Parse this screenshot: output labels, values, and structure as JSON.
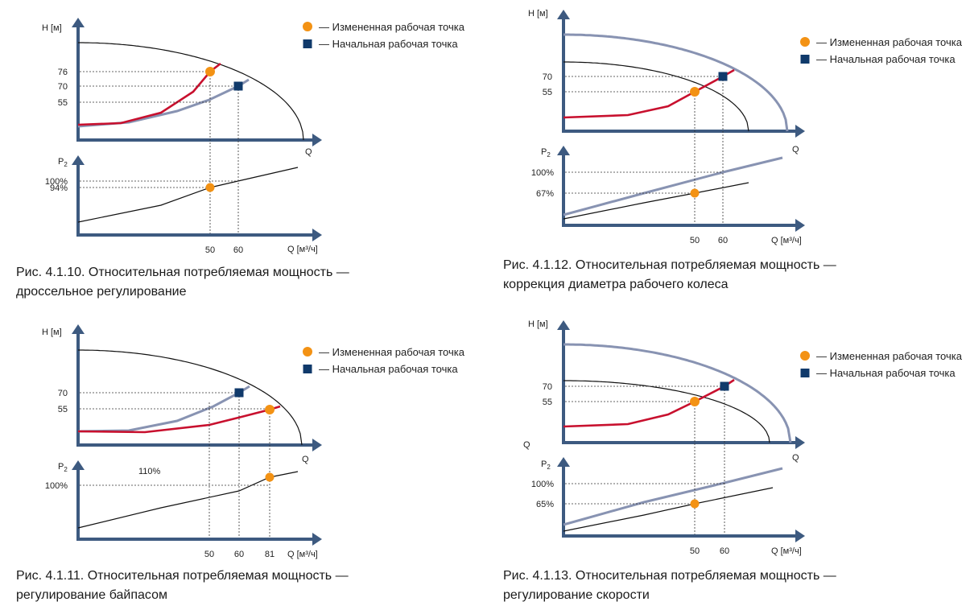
{
  "legend": {
    "changed_point": "— Измененная рабочая точка",
    "initial_point": "— Начальная рабочая точка"
  },
  "colors": {
    "axis": "#3d5a80",
    "system_curve_red": "#c8102e",
    "pump_curve_blue": "#8893b2",
    "changed_point": "#f39214",
    "initial_point": "#103a6b"
  },
  "chart_data": [
    {
      "id": "4.1.10",
      "type": "line",
      "caption": [
        "Рис. 4.1.10. Относительная потребляемая мощность —",
        "дроссельное регулирование"
      ],
      "top": {
        "ylabel": "H [м]",
        "xlabel": "Q",
        "yticks": [
          {
            "v": 76,
            "label": "76"
          },
          {
            "v": 70,
            "label": "70"
          },
          {
            "v": 55,
            "label": "55"
          }
        ]
      },
      "bottom": {
        "ylabel": "P2",
        "xlabel": "Q [м³/ч]",
        "yticks": [
          {
            "v": 100,
            "label": "100%"
          },
          {
            "v": 94,
            "label": "94%"
          }
        ]
      },
      "xticks": [
        {
          "v": 50,
          "label": "50"
        },
        {
          "v": 60,
          "label": "60"
        }
      ],
      "points": {
        "changed": {
          "q": 50,
          "h": 76,
          "p": 94
        },
        "initial": {
          "q": 60,
          "h": 70
        }
      },
      "inline_labels": []
    },
    {
      "id": "4.1.12",
      "type": "line",
      "caption": [
        "Рис. 4.1.12. Относительная потребляемая мощность —",
        "коррекция диаметра рабочего колеса"
      ],
      "top": {
        "ylabel": "H [м]",
        "xlabel": "Q",
        "yticks": [
          {
            "v": 70,
            "label": "70"
          },
          {
            "v": 55,
            "label": "55"
          }
        ]
      },
      "bottom": {
        "ylabel": "P2",
        "xlabel": "Q [м³/ч]",
        "yticks": [
          {
            "v": 100,
            "label": "100%"
          },
          {
            "v": 67,
            "label": "67%"
          }
        ]
      },
      "xticks": [
        {
          "v": 50,
          "label": "50"
        },
        {
          "v": 60,
          "label": "60"
        }
      ],
      "points": {
        "changed": {
          "q": 50,
          "h": 55,
          "p": 67
        },
        "initial": {
          "q": 60,
          "h": 70
        }
      },
      "inline_labels": []
    },
    {
      "id": "4.1.11",
      "type": "line",
      "caption": [
        "Рис. 4.1.11. Относительная потребляемая мощность —",
        "регулирование байпасом"
      ],
      "top": {
        "ylabel": "H [м]",
        "xlabel": "Q",
        "yticks": [
          {
            "v": 70,
            "label": "70"
          },
          {
            "v": 55,
            "label": "55"
          }
        ]
      },
      "bottom": {
        "ylabel": "P2",
        "xlabel": "Q [м³/ч]",
        "yticks": [
          {
            "v": 100,
            "label": "100%"
          }
        ]
      },
      "xticks": [
        {
          "v": 50,
          "label": "50"
        },
        {
          "v": 60,
          "label": "60"
        },
        {
          "v": 81,
          "label": "81"
        }
      ],
      "points": {
        "changed": {
          "q": 81,
          "h": 55,
          "p": 110
        },
        "initial": {
          "q": 60,
          "h": 70
        }
      },
      "inline_labels": [
        "110%"
      ]
    },
    {
      "id": "4.1.13",
      "type": "line",
      "caption": [
        "Рис. 4.1.13. Относительная потребляемая мощность —",
        "регулирование скорости"
      ],
      "top": {
        "ylabel": "H [м]",
        "xlabel": "Q",
        "yticks": [
          {
            "v": 70,
            "label": "70"
          },
          {
            "v": 55,
            "label": "55"
          }
        ]
      },
      "bottom": {
        "ylabel": "P2",
        "xlabel": "Q [м³/ч]",
        "yticks": [
          {
            "v": 100,
            "label": "100%"
          },
          {
            "v": 65,
            "label": "65%"
          }
        ]
      },
      "xticks": [
        {
          "v": 50,
          "label": "50"
        },
        {
          "v": 60,
          "label": "60"
        }
      ],
      "points": {
        "changed": {
          "q": 50,
          "h": 55,
          "p": 65
        },
        "initial": {
          "q": 60,
          "h": 70
        }
      },
      "inline_labels": [
        "Q"
      ]
    }
  ]
}
